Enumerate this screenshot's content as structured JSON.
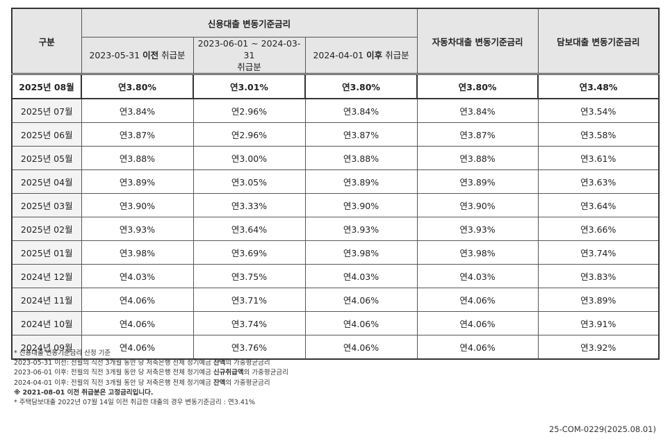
{
  "table": {
    "header": {
      "category": "구분",
      "credit_group": "신용대출 변동기준금리",
      "credit_sub": [
        {
          "pre": "2023-05-31 ",
          "bold": "이전",
          "post": " 취급분"
        },
        {
          "line1": "2023-06-01 ~ 2024-03-31",
          "line2": "취급분"
        },
        {
          "pre": "2024-04-01 ",
          "bold": "이후",
          "post": " 취급분"
        }
      ],
      "auto": "자동차대출 변동기준금리",
      "secured": "담보대출 변동기준금리"
    },
    "rows": [
      {
        "month": "2025년 08월",
        "c1": "연3.80%",
        "c2": "연3.01%",
        "c3": "연3.80%",
        "auto": "연3.80%",
        "secured": "연3.48%"
      },
      {
        "month": "2025년 07월",
        "c1": "연3.84%",
        "c2": "연2.96%",
        "c3": "연3.84%",
        "auto": "연3.84%",
        "secured": "연3.54%"
      },
      {
        "month": "2025년 06월",
        "c1": "연3.87%",
        "c2": "연2.96%",
        "c3": "연3.87%",
        "auto": "연3.87%",
        "secured": "연3.58%"
      },
      {
        "month": "2025년 05월",
        "c1": "연3.88%",
        "c2": "연3.00%",
        "c3": "연3.88%",
        "auto": "연3.88%",
        "secured": "연3.61%"
      },
      {
        "month": "2025년 04월",
        "c1": "연3.89%",
        "c2": "연3.05%",
        "c3": "연3.89%",
        "auto": "연3.89%",
        "secured": "연3.63%"
      },
      {
        "month": "2025년 03월",
        "c1": "연3.90%",
        "c2": "연3.33%",
        "c3": "연3.90%",
        "auto": "연3.90%",
        "secured": "연3.64%"
      },
      {
        "month": "2025년 02월",
        "c1": "연3.93%",
        "c2": "연3.64%",
        "c3": "연3.93%",
        "auto": "연3.93%",
        "secured": "연3.66%"
      },
      {
        "month": "2025년 01월",
        "c1": "연3.98%",
        "c2": "연3.69%",
        "c3": "연3.98%",
        "auto": "연3.98%",
        "secured": "연3.74%"
      },
      {
        "month": "2024년 12월",
        "c1": "연4.03%",
        "c2": "연3.75%",
        "c3": "연4.03%",
        "auto": "연4.03%",
        "secured": "연3.83%"
      },
      {
        "month": "2024년 11월",
        "c1": "연4.06%",
        "c2": "연3.71%",
        "c3": "연4.06%",
        "auto": "연4.06%",
        "secured": "연3.89%"
      },
      {
        "month": "2024년 10월",
        "c1": "연4.06%",
        "c2": "연3.74%",
        "c3": "연4.06%",
        "auto": "연4.06%",
        "secured": "연3.91%"
      },
      {
        "month": "2024년 09월",
        "c1": "연4.06%",
        "c2": "연3.76%",
        "c3": "연4.06%",
        "auto": "연4.06%",
        "secured": "연3.92%"
      }
    ]
  },
  "notes": {
    "n1": "* 신용대출 변동기준금리 산정 기준",
    "n2": {
      "pre": "2023-05-31 이전: 전월의 직전 3개월 동안 당 저축은행 전체 정기예금 ",
      "bold": "잔액",
      "post": "의 가중평균금리"
    },
    "n3": {
      "pre": "2023-06-01 이후: 전월의 직전 3개월 동안 당 저축은행 전체 정기예금 ",
      "bold": "신규취급액",
      "post": "의 가중평균금리"
    },
    "n4": {
      "pre": "2024-04-01 이후: 전월의 직전 3개월 동안 당 저축은행 전체 정기예금 ",
      "bold": "잔액",
      "post": "의 가중평균금리"
    },
    "n5": "※ 2021-08-01 이전 취급분은 고정금리입니다.",
    "n6": "* 주택담보대출 2022년 07월 14일 이전 취급한 대출의 경우 변동기준금리 : 연3.41%"
  },
  "doc_code": "25-COM-0229(2025.08.01)"
}
